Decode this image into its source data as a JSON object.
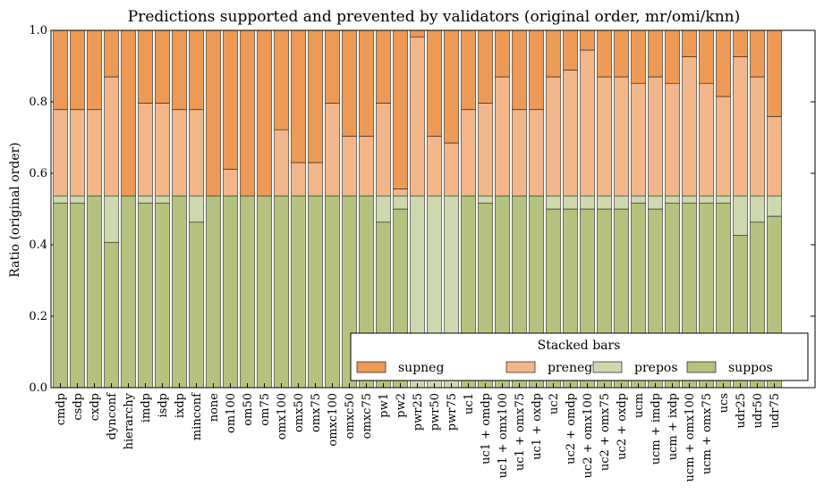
{
  "chart_data": {
    "type": "bar",
    "stacked": true,
    "title": "Predictions supported and prevented by validators (original order, mr/omi/knn)",
    "ylabel": "Ratio (original order)",
    "xlabel": "",
    "ylim": [
      0,
      1
    ],
    "yticks": [
      "0.0",
      "0.2",
      "0.4",
      "0.6",
      "0.8",
      "1.0"
    ],
    "legend": {
      "title": "Stacked bars",
      "placement": "lower-right",
      "order": [
        "supneg",
        "preneg",
        "prepos",
        "suppos"
      ]
    },
    "colors": {
      "supneg": "#ec9a56",
      "preneg": "#f2b68a",
      "prepos": "#cdd8ae",
      "suppos": "#b5c27f"
    },
    "categories": [
      "cmdp",
      "csdp",
      "cxdp",
      "dynconf",
      "hierarchy",
      "imdp",
      "isdp",
      "ixdp",
      "minconf",
      "none",
      "om100",
      "om50",
      "om75",
      "omx100",
      "omx50",
      "omx75",
      "omxc100",
      "omxc50",
      "omxc75",
      "pw1",
      "pw2",
      "pwr25",
      "pwr50",
      "pwr75",
      "uc1",
      "uc1 + omdp",
      "uc1 + omx100",
      "uc1 + omx75",
      "uc1 + oxdp",
      "uc2",
      "uc2 + omdp",
      "uc2 + omx100",
      "uc2 + omx75",
      "uc2 + oxdp",
      "ucm",
      "ucm + imdp",
      "ucm + ixdp",
      "ucm + omx100",
      "ucm + omx75",
      "ucs",
      "udr25",
      "udr50",
      "udr75"
    ],
    "series": [
      {
        "name": "suppos",
        "values": [
          0.517,
          0.517,
          0.537,
          0.407,
          0.537,
          0.517,
          0.517,
          0.537,
          0.463,
          0.537,
          0.537,
          0.537,
          0.537,
          0.537,
          0.537,
          0.537,
          0.537,
          0.537,
          0.537,
          0.463,
          0.5,
          0.0,
          0.0,
          0.0,
          0.537,
          0.517,
          0.537,
          0.537,
          0.537,
          0.5,
          0.5,
          0.5,
          0.5,
          0.5,
          0.517,
          0.5,
          0.517,
          0.517,
          0.517,
          0.517,
          0.426,
          0.463,
          0.48
        ]
      },
      {
        "name": "prepos",
        "values": [
          0.02,
          0.02,
          0.0,
          0.13,
          0.0,
          0.02,
          0.02,
          0.0,
          0.074,
          0.0,
          0.0,
          0.0,
          0.0,
          0.0,
          0.0,
          0.0,
          0.0,
          0.0,
          0.0,
          0.074,
          0.037,
          0.537,
          0.537,
          0.537,
          0.0,
          0.02,
          0.0,
          0.0,
          0.0,
          0.037,
          0.037,
          0.037,
          0.037,
          0.037,
          0.02,
          0.037,
          0.02,
          0.02,
          0.02,
          0.02,
          0.111,
          0.074,
          0.057
        ]
      },
      {
        "name": "preneg",
        "values": [
          0.241,
          0.241,
          0.241,
          0.333,
          0.0,
          0.259,
          0.259,
          0.241,
          0.241,
          0.0,
          0.074,
          0.0,
          0.0,
          0.185,
          0.093,
          0.093,
          0.259,
          0.167,
          0.167,
          0.259,
          0.019,
          0.445,
          0.167,
          0.148,
          0.241,
          0.259,
          0.333,
          0.241,
          0.241,
          0.333,
          0.352,
          0.408,
          0.333,
          0.333,
          0.315,
          0.333,
          0.315,
          0.389,
          0.315,
          0.278,
          0.389,
          0.333,
          0.222
        ]
      },
      {
        "name": "supneg",
        "values": [
          0.222,
          0.222,
          0.222,
          0.13,
          0.463,
          0.204,
          0.204,
          0.222,
          0.222,
          0.463,
          0.389,
          0.463,
          0.463,
          0.278,
          0.37,
          0.37,
          0.204,
          0.296,
          0.296,
          0.204,
          0.444,
          0.018,
          0.296,
          0.315,
          0.222,
          0.204,
          0.13,
          0.222,
          0.222,
          0.13,
          0.111,
          0.055,
          0.13,
          0.13,
          0.148,
          0.13,
          0.148,
          0.074,
          0.148,
          0.185,
          0.074,
          0.13,
          0.241
        ]
      }
    ]
  }
}
